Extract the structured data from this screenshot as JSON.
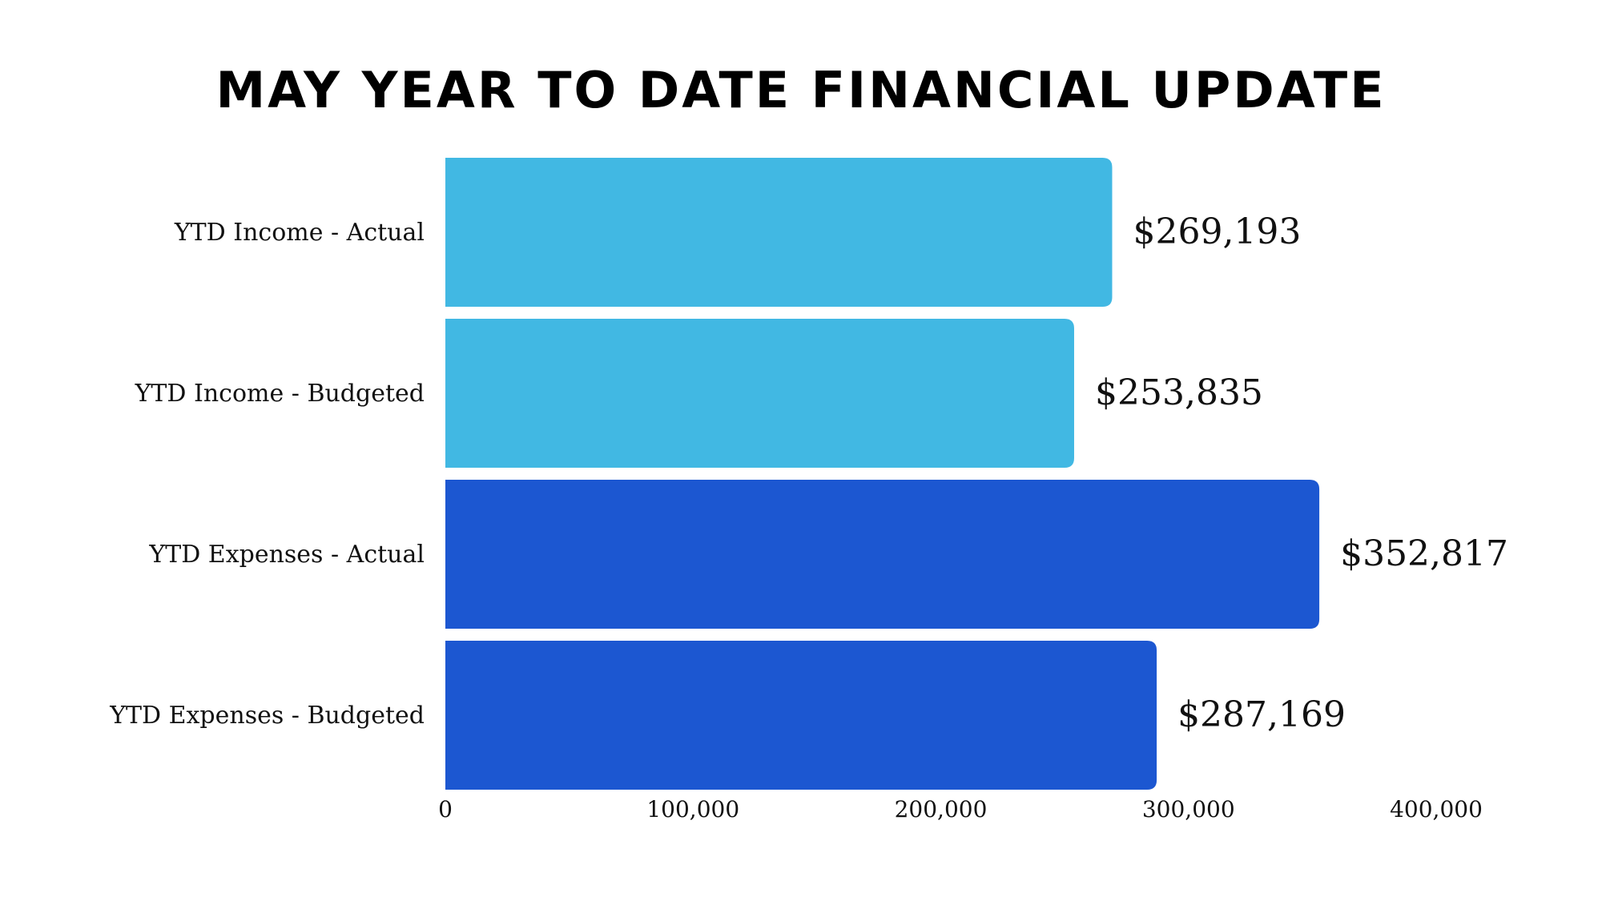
{
  "chart_data": {
    "type": "bar",
    "orientation": "horizontal",
    "title": "May Year to Date Financial Update",
    "categories": [
      "YTD Income - Actual",
      "YTD Income - Budgeted",
      "YTD Expenses - Actual",
      "YTD Expenses - Budgeted"
    ],
    "values": [
      269193,
      253835,
      352817,
      287169
    ],
    "value_labels": [
      "$269,193",
      "$253,835",
      "$352,817",
      "$287,169"
    ],
    "bar_colors": [
      "#41b8e3",
      "#41b8e3",
      "#1c57d1",
      "#1c57d1"
    ],
    "xlim": [
      0,
      400000
    ],
    "x_ticks": [
      0,
      100000,
      200000,
      300000,
      400000
    ],
    "x_tick_labels": [
      "0",
      "100,000",
      "200,000",
      "300,000",
      "400,000"
    ],
    "xlabel": "",
    "ylabel": "",
    "grid": false,
    "legend": "none"
  }
}
